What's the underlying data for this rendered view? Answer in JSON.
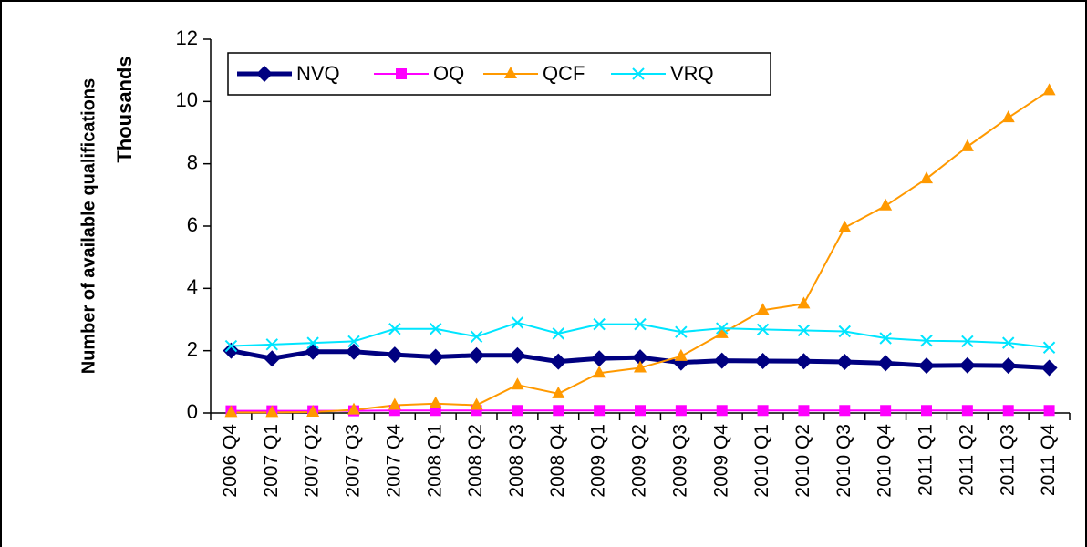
{
  "chart_data": {
    "type": "line",
    "y_label": "Number of available qualifications",
    "y_unit_label": "Thousands",
    "categories": [
      "2006 Q4",
      "2007 Q1",
      "2007 Q2",
      "2007 Q3",
      "2007 Q4",
      "2008 Q1",
      "2008 Q2",
      "2008 Q3",
      "2008 Q4",
      "2009 Q1",
      "2009 Q2",
      "2009 Q3",
      "2009 Q4",
      "2010 Q1",
      "2010 Q2",
      "2010 Q3",
      "2010 Q4",
      "2011 Q1",
      "2011 Q2",
      "2011 Q3",
      "2011 Q4"
    ],
    "series": [
      {
        "name": "NVQ",
        "color": "#000080",
        "marker": "diamond",
        "values": [
          2.0,
          1.75,
          1.97,
          1.97,
          1.87,
          1.8,
          1.85,
          1.85,
          1.65,
          1.75,
          1.78,
          1.62,
          1.68,
          1.67,
          1.66,
          1.64,
          1.6,
          1.52,
          1.53,
          1.52,
          1.45
        ]
      },
      {
        "name": "OQ",
        "color": "#ff00ff",
        "marker": "square",
        "values": [
          0.07,
          0.07,
          0.07,
          0.07,
          0.08,
          0.08,
          0.08,
          0.08,
          0.08,
          0.08,
          0.08,
          0.08,
          0.08,
          0.08,
          0.08,
          0.08,
          0.08,
          0.08,
          0.08,
          0.08,
          0.08
        ]
      },
      {
        "name": "QCF",
        "color": "#ff9900",
        "marker": "triangle",
        "values": [
          0.02,
          0.02,
          0.03,
          0.1,
          0.25,
          0.3,
          0.25,
          0.9,
          0.62,
          1.28,
          1.45,
          1.82,
          2.55,
          3.3,
          3.5,
          5.95,
          6.65,
          7.52,
          8.55,
          9.48,
          10.35
        ]
      },
      {
        "name": "VRQ",
        "color": "#00e5ff",
        "marker": "x",
        "values": [
          2.15,
          2.2,
          2.25,
          2.3,
          2.7,
          2.7,
          2.45,
          2.9,
          2.55,
          2.85,
          2.85,
          2.6,
          2.72,
          2.68,
          2.65,
          2.62,
          2.4,
          2.32,
          2.3,
          2.25,
          2.1
        ]
      }
    ],
    "ylim": [
      0,
      12
    ],
    "yticks": [
      0,
      2,
      4,
      6,
      8,
      10,
      12
    ],
    "grid": false,
    "legend": "top-left"
  }
}
